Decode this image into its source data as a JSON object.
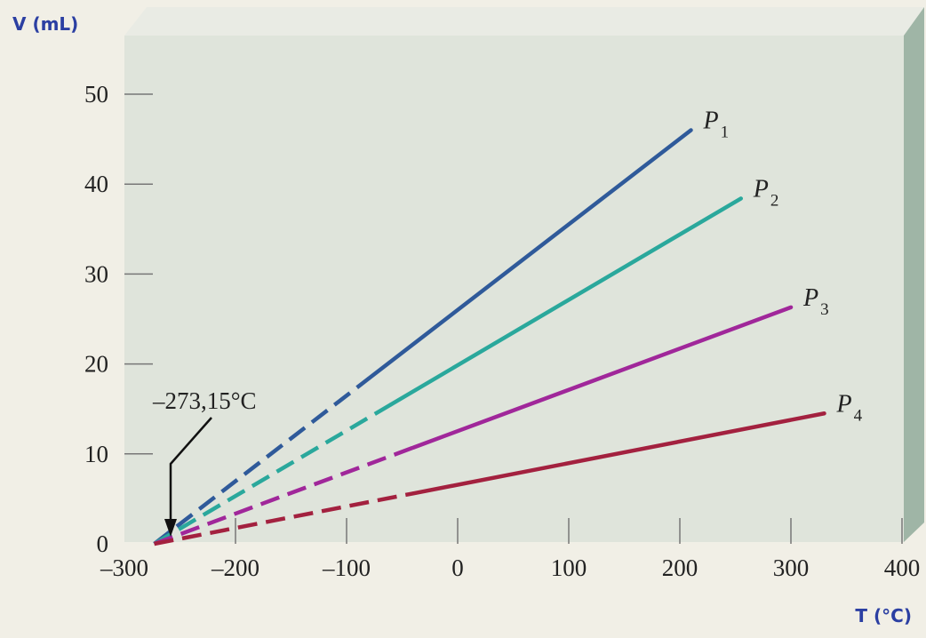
{
  "chart_data": {
    "type": "line",
    "ylabel": "V (mL)",
    "xlabel": "T (°C)",
    "xlim": [
      -300,
      400
    ],
    "ylim": [
      0,
      50
    ],
    "x_ticks": [
      -300,
      -200,
      -100,
      0,
      100,
      200,
      300,
      400
    ],
    "x_tick_labels": [
      "–300",
      "–200",
      "–100",
      "0",
      "100",
      "200",
      "300",
      "400"
    ],
    "y_ticks": [
      0,
      10,
      20,
      30,
      40,
      50
    ],
    "y_tick_labels": [
      "0",
      "10",
      "20",
      "30",
      "40",
      "50"
    ],
    "grid": false,
    "annotation": {
      "text": "–273,15°C",
      "x": -273.15,
      "y": 0
    },
    "series": [
      {
        "name": "P1",
        "label_main": "P",
        "label_sub": "1",
        "color": "#2f5a9a",
        "x_start": -273.15,
        "x_dash_end": -80,
        "x_end": 210,
        "y_end": 46
      },
      {
        "name": "P2",
        "label_main": "P",
        "label_sub": "2",
        "color": "#2aa89c",
        "x_start": -273.15,
        "x_dash_end": -60,
        "x_end": 255,
        "y_end": 38.4
      },
      {
        "name": "P3",
        "label_main": "P",
        "label_sub": "3",
        "color": "#a0279a",
        "x_start": -273.15,
        "x_dash_end": -40,
        "x_end": 300,
        "y_end": 26.3
      },
      {
        "name": "P4",
        "label_main": "P",
        "label_sub": "4",
        "color": "#a3213f",
        "x_start": -273.15,
        "x_dash_end": -40,
        "x_end": 330,
        "y_end": 14.5
      }
    ]
  }
}
